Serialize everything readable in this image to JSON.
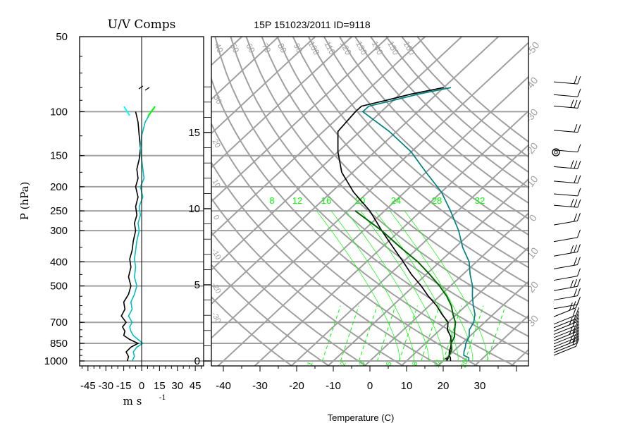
{
  "chart_data": [
    {
      "type": "line",
      "title": "U/V Comps",
      "ylabel": "P (hPa)",
      "xlabel": "m s",
      "xlabel_exponent": "-1",
      "yscale": "log",
      "ylim": [
        1000,
        50
      ],
      "xlim": [
        -52,
        52
      ],
      "y_ticks": [
        50,
        100,
        150,
        200,
        250,
        300,
        400,
        500,
        700,
        850,
        1000
      ],
      "y_tick_labels": [
        "50",
        "100",
        "150",
        "200",
        "250",
        "300",
        "400",
        "500",
        "700",
        "850",
        "1000"
      ],
      "x_ticks": [
        -45,
        -30,
        -15,
        0,
        15,
        30,
        45
      ],
      "x_tick_labels": [
        "-45",
        "-30",
        "-15",
        "0",
        "15",
        "30",
        "45"
      ],
      "grid": "horizontal at pressure ticks",
      "colors": {
        "u_wind": "#0000ff",
        "v_wind": "#00ffff",
        "trace": "#000000",
        "accent": "#00ff00"
      },
      "series": [
        {
          "key": "u",
          "color": "#000000",
          "points": [
            [
              -12,
              1000
            ],
            [
              -11,
              960
            ],
            [
              -13,
              920
            ],
            [
              -9,
              880
            ],
            [
              -3,
              850
            ],
            [
              -10,
              820
            ],
            [
              -15,
              790
            ],
            [
              -14,
              760
            ],
            [
              -16,
              730
            ],
            [
              -13,
              700
            ],
            [
              -17,
              660
            ],
            [
              -14,
              620
            ],
            [
              -15,
              580
            ],
            [
              -11,
              540
            ],
            [
              -9,
              500
            ],
            [
              -11,
              460
            ],
            [
              -9,
              420
            ],
            [
              -10,
              390
            ],
            [
              -8,
              360
            ],
            [
              -7,
              330
            ],
            [
              -5,
              300
            ],
            [
              -6,
              280
            ],
            [
              -4,
              260
            ],
            [
              -5,
              240
            ],
            [
              -3,
              220
            ],
            [
              -5,
              200
            ],
            [
              -3,
              185
            ],
            [
              -4,
              170
            ],
            [
              -2,
              155
            ],
            [
              -1,
              140
            ],
            [
              -2,
              125
            ],
            [
              -3,
              110
            ],
            [
              -5,
              100
            ]
          ]
        },
        {
          "key": "v",
          "color": "#00c0c0",
          "points": [
            [
              -8,
              1000
            ],
            [
              -6,
              960
            ],
            [
              -7,
              920
            ],
            [
              -4,
              880
            ],
            [
              1,
              850
            ],
            [
              -3,
              820
            ],
            [
              -7,
              790
            ],
            [
              -9,
              760
            ],
            [
              -10,
              730
            ],
            [
              -8,
              700
            ],
            [
              -11,
              660
            ],
            [
              -8,
              620
            ],
            [
              -9,
              580
            ],
            [
              -6,
              540
            ],
            [
              -4,
              500
            ],
            [
              -6,
              460
            ],
            [
              -5,
              420
            ],
            [
              -6,
              390
            ],
            [
              -5,
              360
            ],
            [
              -4,
              330
            ],
            [
              -2,
              300
            ],
            [
              -3,
              280
            ],
            [
              -1,
              260
            ],
            [
              -2,
              240
            ],
            [
              1,
              220
            ],
            [
              -1,
              200
            ],
            [
              2,
              185
            ],
            [
              1,
              170
            ],
            [
              0,
              155
            ],
            [
              -1,
              140
            ],
            [
              0,
              125
            ],
            [
              3,
              110
            ],
            [
              8,
              100
            ]
          ]
        }
      ]
    },
    {
      "type": "line",
      "title": "15P 151023/2011 ID=9118",
      "xlabel": "Temperature (C)",
      "xlim": [
        -43,
        40
      ],
      "yscale": "log",
      "ylim": [
        1000,
        50
      ],
      "x_ticks": [
        -40,
        -30,
        -20,
        -10,
        0,
        10,
        20,
        30
      ],
      "x_tick_labels": [
        "-40",
        "-30",
        "-20",
        "-10",
        "0",
        "10",
        "20",
        "30"
      ],
      "height_ticks": [
        "0",
        "5",
        "10",
        "15"
      ],
      "isotherm_labels": [
        "-50",
        "-40",
        "-30",
        "-20",
        "-10",
        "0",
        "10",
        "20",
        "30"
      ],
      "dry_adiabat_labels": [
        "40",
        "50",
        "60",
        "70",
        "80",
        "90",
        "100",
        "110",
        "120",
        "130",
        "140",
        "150",
        "160"
      ],
      "moist_labels": [
        "8",
        "12",
        "16",
        "20",
        "24",
        "28",
        "32"
      ],
      "mixing_ratio_labels": [
        "2",
        "3",
        "5",
        "8",
        "12",
        "20"
      ],
      "grid": "isobars, skewed isotherms, dry adiabats, moist adiabats, mixing ratio lines",
      "colors": {
        "grid": "#a0a0a0",
        "moist": "#00ff00",
        "dew": "#008080",
        "parcel": "#006400"
      },
      "series": [
        {
          "key": "temperature",
          "color": "#008080",
          "points": [
            [
              27,
              1000
            ],
            [
              26,
              970
            ],
            [
              24,
              950
            ],
            [
              23,
              920
            ],
            [
              22,
              880
            ],
            [
              21,
              850
            ],
            [
              20,
              800
            ],
            [
              18,
              750
            ],
            [
              17,
              700
            ],
            [
              15,
              650
            ],
            [
              12,
              600
            ],
            [
              9,
              550
            ],
            [
              6,
              500
            ],
            [
              2,
              450
            ],
            [
              -2,
              400
            ],
            [
              -8,
              350
            ],
            [
              -14,
              300
            ],
            [
              -22,
              250
            ],
            [
              -30,
              210
            ],
            [
              -40,
              175
            ],
            [
              -50,
              145
            ],
            [
              -62,
              120
            ],
            [
              -75,
              100
            ],
            [
              -75,
              95
            ],
            [
              -70,
              90
            ],
            [
              -65,
              85
            ],
            [
              -58,
              80
            ]
          ]
        },
        {
          "key": "dewpoint",
          "color": "#000000",
          "points": [
            [
              22,
              1000
            ],
            [
              21,
              970
            ],
            [
              20,
              950
            ],
            [
              19,
              920
            ],
            [
              18,
              880
            ],
            [
              17,
              850
            ],
            [
              15,
              800
            ],
            [
              12,
              750
            ],
            [
              10,
              700
            ],
            [
              6,
              650
            ],
            [
              2,
              600
            ],
            [
              -3,
              550
            ],
            [
              -8,
              500
            ],
            [
              -14,
              450
            ],
            [
              -20,
              400
            ],
            [
              -27,
              350
            ],
            [
              -35,
              300
            ],
            [
              -44,
              250
            ],
            [
              -54,
              210
            ],
            [
              -63,
              175
            ],
            [
              -70,
              145
            ],
            [
              -76,
              120
            ],
            [
              -77,
              100
            ],
            [
              -77,
              95
            ],
            [
              -72,
              90
            ],
            [
              -67,
              85
            ],
            [
              -60,
              80
            ]
          ]
        },
        {
          "key": "parcel",
          "color": "#006400",
          "points": [
            [
              21,
              1000
            ],
            [
              20,
              950
            ],
            [
              19,
              900
            ],
            [
              17,
              850
            ],
            [
              16,
              800
            ],
            [
              14,
              750
            ],
            [
              12,
              700
            ],
            [
              9,
              650
            ],
            [
              6,
              600
            ],
            [
              2,
              550
            ],
            [
              -3,
              500
            ],
            [
              -9,
              450
            ],
            [
              -16,
              400
            ],
            [
              -25,
              350
            ],
            [
              -35,
              300
            ],
            [
              -48,
              250
            ]
          ]
        }
      ]
    }
  ],
  "wind_barbs": {
    "levels": [
      1000,
      975,
      950,
      925,
      900,
      875,
      850,
      825,
      800,
      775,
      750,
      700,
      650,
      600,
      550,
      500,
      450,
      400,
      350,
      300,
      250,
      225,
      200,
      175,
      150,
      125,
      100,
      90,
      80
    ]
  }
}
